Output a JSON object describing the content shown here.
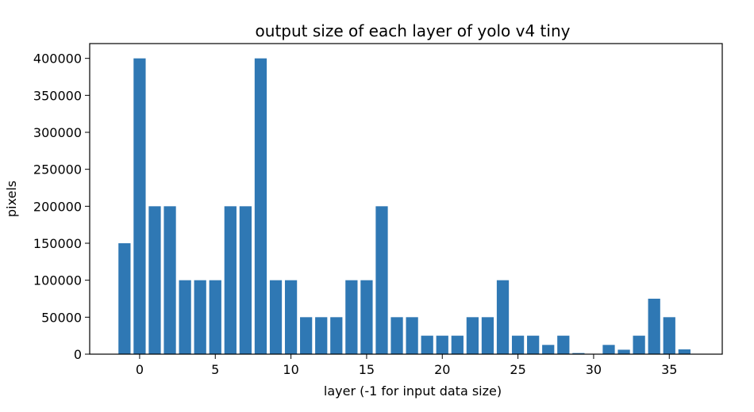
{
  "chart_data": {
    "type": "bar",
    "title": "output size of each layer of yolo v4 tiny",
    "xlabel": "layer (-1 for input data size)",
    "ylabel": "pixels",
    "x": [
      -1,
      0,
      1,
      2,
      3,
      4,
      5,
      6,
      7,
      8,
      9,
      10,
      11,
      12,
      13,
      14,
      15,
      16,
      17,
      18,
      19,
      20,
      21,
      22,
      23,
      24,
      25,
      26,
      27,
      28,
      29,
      30,
      31,
      32,
      33,
      34,
      35,
      36
    ],
    "values": [
      150000,
      400000,
      200000,
      200000,
      100000,
      100000,
      100000,
      200000,
      200000,
      400000,
      100000,
      100000,
      50000,
      50000,
      50000,
      100000,
      100000,
      200000,
      50000,
      50000,
      25000,
      25000,
      25000,
      50000,
      50000,
      100000,
      25000,
      25000,
      12500,
      25000,
      1500,
      0,
      12500,
      6000,
      25000,
      75000,
      50000,
      6500
    ],
    "color": "#2f78b4",
    "xlim": [
      -3.3,
      38.5
    ],
    "ylim": [
      0,
      420000
    ],
    "x_ticks": [
      0,
      5,
      10,
      15,
      20,
      25,
      30,
      35
    ],
    "y_ticks": [
      0,
      50000,
      100000,
      150000,
      200000,
      250000,
      300000,
      350000,
      400000
    ],
    "grid": false
  }
}
